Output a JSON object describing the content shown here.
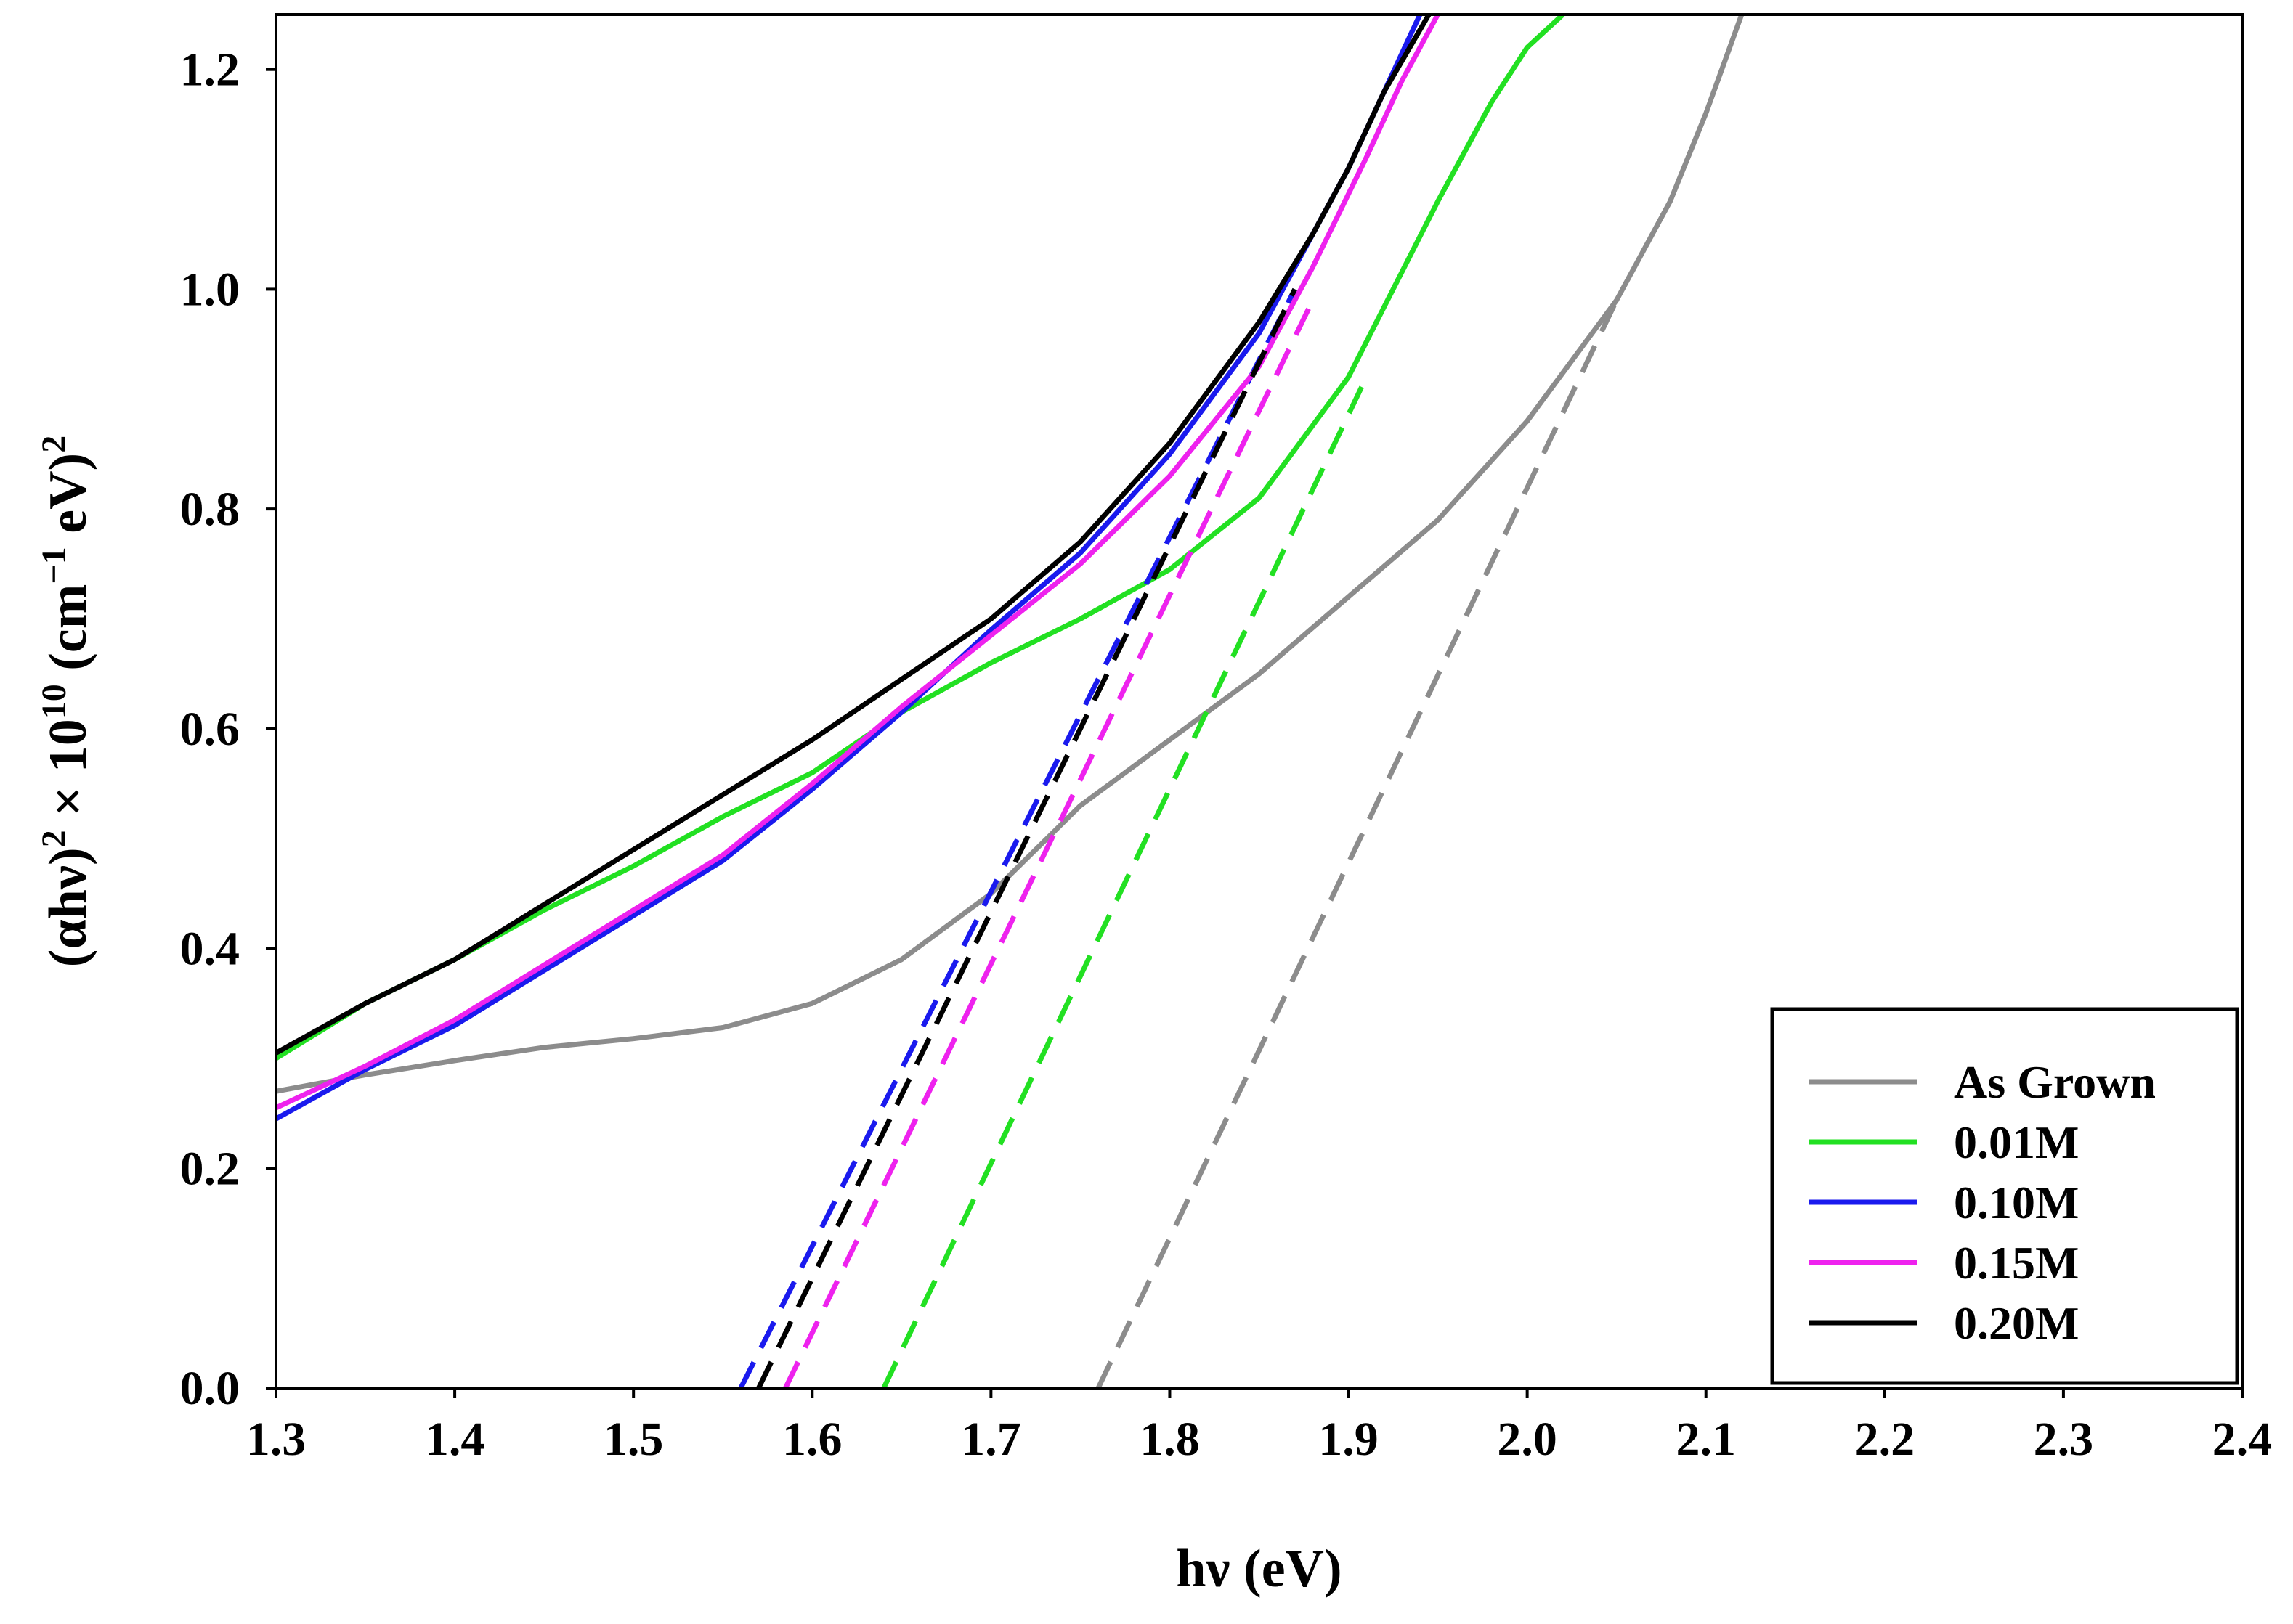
{
  "chart_data": {
    "type": "line",
    "title": "",
    "xlabel": "hν (eV)",
    "ylabel_parts": {
      "base": "(αhν)",
      "sup1": "2",
      "times": " × 10",
      "sup2": "10",
      "unit": " (cm",
      "sup3": "−1",
      "unit2": " eV)",
      "sup4": "2"
    },
    "xlim": [
      1.3,
      2.4
    ],
    "ylim": [
      0.0,
      1.25
    ],
    "xticks": [
      "1.3",
      "1.4",
      "1.5",
      "1.6",
      "1.7",
      "1.8",
      "1.9",
      "2.0",
      "2.1",
      "2.2",
      "2.3",
      "2.4"
    ],
    "yticks": [
      "0.0",
      "0.2",
      "0.4",
      "0.6",
      "0.8",
      "1.0",
      "1.2"
    ],
    "grid": false,
    "legend_position": "bottom-right",
    "series": [
      {
        "name": "As Grown",
        "color": "#8c8c8c",
        "x": [
          1.3,
          1.35,
          1.4,
          1.45,
          1.5,
          1.55,
          1.6,
          1.65,
          1.7,
          1.75,
          1.8,
          1.85,
          1.9,
          1.95,
          2.0,
          2.05,
          2.08,
          2.1,
          2.12
        ],
        "y": [
          0.27,
          0.285,
          0.298,
          0.31,
          0.318,
          0.328,
          0.35,
          0.39,
          0.45,
          0.53,
          0.59,
          0.65,
          0.72,
          0.79,
          0.88,
          0.99,
          1.08,
          1.16,
          1.25
        ],
        "fit_x": [
          1.76,
          2.05
        ],
        "fit_y": [
          0.0,
          0.99
        ]
      },
      {
        "name": "0.01M",
        "color": "#22e022",
        "x": [
          1.3,
          1.35,
          1.4,
          1.45,
          1.5,
          1.55,
          1.6,
          1.65,
          1.7,
          1.75,
          1.8,
          1.85,
          1.9,
          1.95,
          1.98,
          2.0,
          2.02
        ],
        "y": [
          0.3,
          0.35,
          0.39,
          0.435,
          0.475,
          0.52,
          0.56,
          0.615,
          0.66,
          0.7,
          0.745,
          0.81,
          0.92,
          1.08,
          1.17,
          1.22,
          1.25
        ],
        "fit_x": [
          1.64,
          1.91
        ],
        "fit_y": [
          0.0,
          0.92
        ]
      },
      {
        "name": "0.10M",
        "color": "#1a1aee",
        "x": [
          1.3,
          1.35,
          1.4,
          1.45,
          1.5,
          1.55,
          1.6,
          1.65,
          1.7,
          1.75,
          1.8,
          1.85,
          1.88,
          1.9,
          1.92,
          1.94
        ],
        "y": [
          0.245,
          0.29,
          0.33,
          0.38,
          0.43,
          0.48,
          0.545,
          0.615,
          0.69,
          0.76,
          0.85,
          0.96,
          1.05,
          1.11,
          1.18,
          1.25
        ],
        "fit_x": [
          1.56,
          1.87
        ],
        "fit_y": [
          0.0,
          1.0
        ]
      },
      {
        "name": "0.15M",
        "color": "#ee22ee",
        "x": [
          1.3,
          1.35,
          1.4,
          1.45,
          1.5,
          1.55,
          1.6,
          1.65,
          1.7,
          1.75,
          1.8,
          1.85,
          1.88,
          1.91,
          1.93,
          1.95
        ],
        "y": [
          0.255,
          0.293,
          0.335,
          0.385,
          0.435,
          0.485,
          0.55,
          0.62,
          0.685,
          0.75,
          0.83,
          0.93,
          1.02,
          1.12,
          1.19,
          1.25
        ],
        "fit_x": [
          1.585,
          1.88
        ],
        "fit_y": [
          0.0,
          0.99
        ]
      },
      {
        "name": "0.20M",
        "color": "#000000",
        "x": [
          1.3,
          1.35,
          1.4,
          1.45,
          1.5,
          1.55,
          1.6,
          1.65,
          1.7,
          1.75,
          1.8,
          1.85,
          1.88,
          1.9,
          1.92,
          1.945
        ],
        "y": [
          0.305,
          0.35,
          0.39,
          0.44,
          0.49,
          0.54,
          0.59,
          0.645,
          0.7,
          0.77,
          0.86,
          0.97,
          1.05,
          1.11,
          1.18,
          1.25
        ],
        "fit_x": [
          1.57,
          1.87
        ],
        "fit_y": [
          0.0,
          1.0
        ]
      }
    ]
  }
}
